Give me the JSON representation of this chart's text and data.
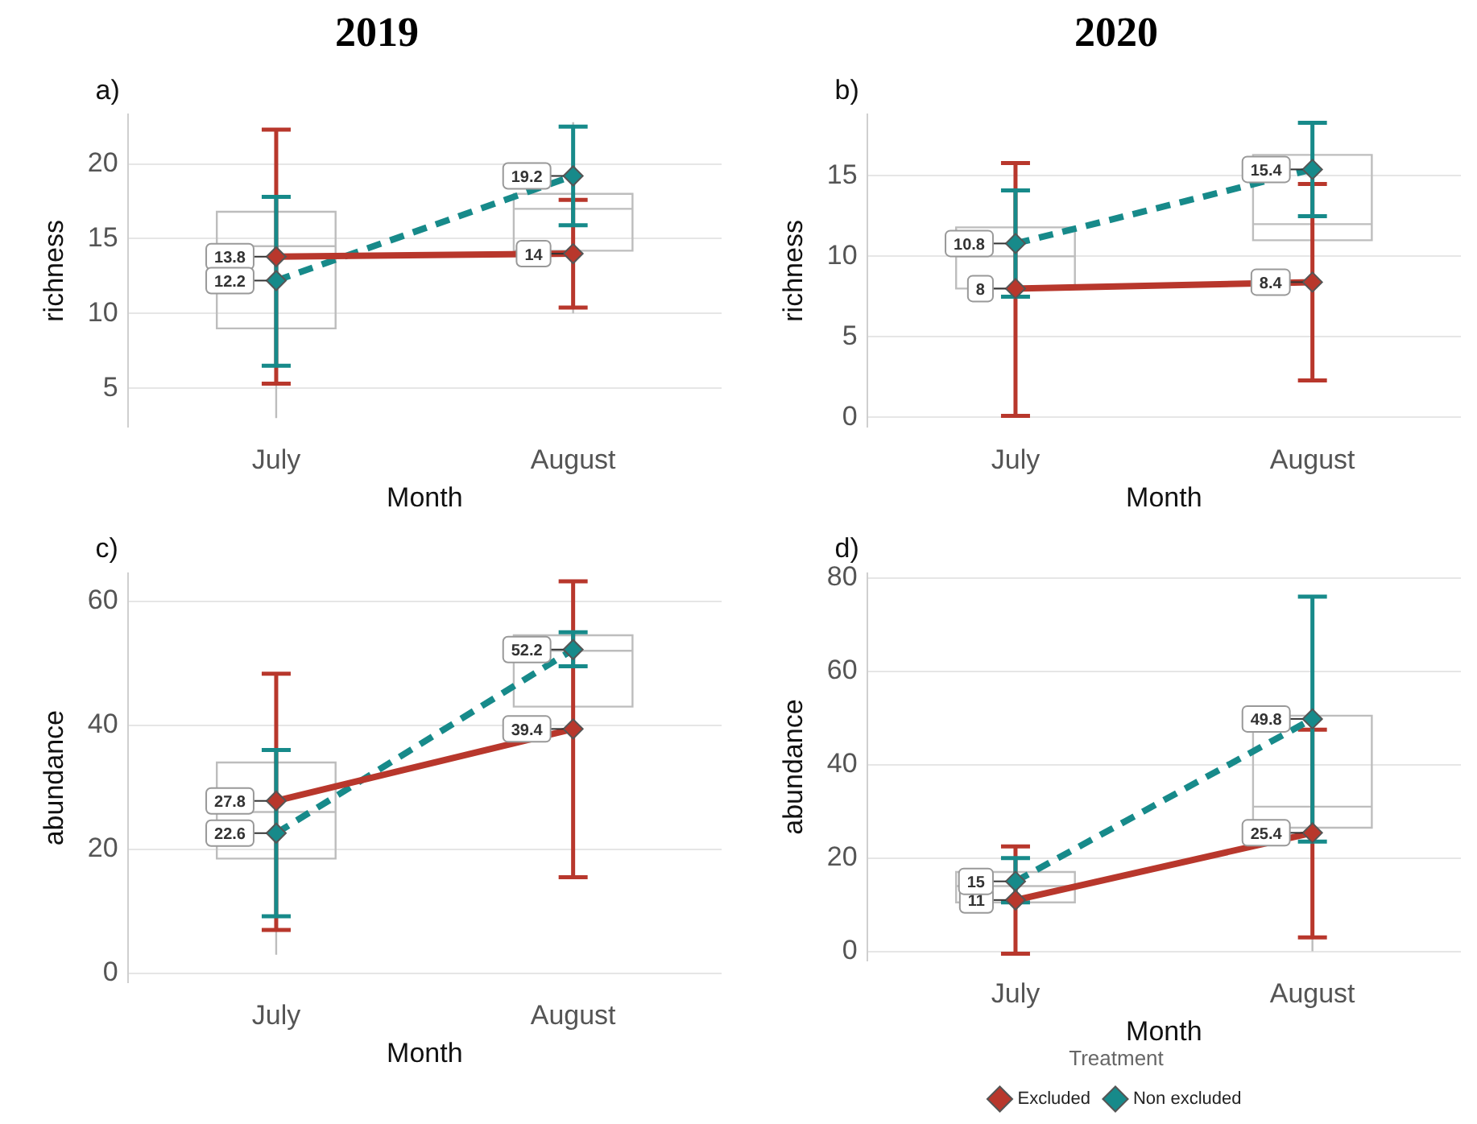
{
  "chart_data": [
    {
      "type": "line",
      "title": "2019",
      "xlabel": "Month",
      "ylabel": "richness",
      "annotations": [
        "a)"
      ],
      "categories": [
        "July",
        "August"
      ],
      "ylim": [
        2.4,
        23.3
      ],
      "yticks": [
        5,
        10,
        15,
        20
      ],
      "grid": "y",
      "marker": "diamond",
      "data_labels": true,
      "series": [
        {
          "type": "box",
          "color": "#bdbdbd",
          "boxes": [
            {
              "low": 3,
              "q1": 9,
              "median": 14.5,
              "q3": 16.8,
              "high": 22
            },
            {
              "low": 10,
              "q1": 14.2,
              "median": 17,
              "q3": 18,
              "high": 22.8
            }
          ]
        },
        {
          "color": "#b8372c",
          "line_style": "solid",
          "values": [
            13.8,
            14
          ],
          "errors": [
            [
              5.3,
              22.3
            ],
            [
              10.4,
              17.6
            ]
          ]
        },
        {
          "color": "#178a8a",
          "line_style": "dashed",
          "values": [
            12.2,
            19.2
          ],
          "errors": [
            [
              6.5,
              17.8
            ],
            [
              15.9,
              22.5
            ]
          ]
        }
      ]
    },
    {
      "type": "line",
      "title": "2020",
      "xlabel": "Month",
      "ylabel": "richness",
      "annotations": [
        "b)"
      ],
      "categories": [
        "July",
        "August"
      ],
      "ylim": [
        -0.6,
        18.8
      ],
      "yticks": [
        0,
        5,
        10,
        15
      ],
      "grid": "y",
      "marker": "diamond",
      "data_labels": true,
      "series": [
        {
          "type": "box",
          "color": "#bdbdbd",
          "boxes": [
            {
              "low": 4,
              "q1": 8,
              "median": 10,
              "q3": 11.8,
              "high": 15.5
            },
            {
              "low": 2.5,
              "q1": 11,
              "median": 12,
              "q3": 16.3,
              "high": 18.3
            }
          ]
        },
        {
          "color": "#b8372c",
          "line_style": "solid",
          "values": [
            8,
            8.4
          ],
          "errors": [
            [
              0.1,
              15.8
            ],
            [
              2.3,
              14.5
            ]
          ]
        },
        {
          "color": "#178a8a",
          "line_style": "dashed",
          "values": [
            10.8,
            15.4
          ],
          "errors": [
            [
              7.5,
              14.1
            ],
            [
              12.5,
              18.3
            ]
          ]
        }
      ]
    },
    {
      "type": "line",
      "xlabel": "Month",
      "ylabel": "abundance",
      "annotations": [
        "c)"
      ],
      "categories": [
        "July",
        "August"
      ],
      "ylim": [
        -1.5,
        64.5
      ],
      "yticks": [
        0,
        20,
        40,
        60
      ],
      "grid": "y",
      "marker": "diamond",
      "data_labels": true,
      "series": [
        {
          "type": "box",
          "color": "#bdbdbd",
          "boxes": [
            {
              "low": 3,
              "q1": 18.5,
              "median": 26,
              "q3": 34,
              "high": 48
            },
            {
              "low": 28,
              "q1": 43,
              "median": 52,
              "q3": 54.5,
              "high": 60
            }
          ]
        },
        {
          "color": "#b8372c",
          "line_style": "solid",
          "values": [
            27.8,
            39.4
          ],
          "errors": [
            [
              7,
              48.3
            ],
            [
              15.5,
              63.2
            ]
          ]
        },
        {
          "color": "#178a8a",
          "line_style": "dashed",
          "values": [
            22.6,
            52.2
          ],
          "errors": [
            [
              9.2,
              36
            ],
            [
              49.5,
              55
            ]
          ]
        }
      ]
    },
    {
      "type": "line",
      "xlabel": "Month",
      "ylabel": "abundance",
      "annotations": [
        "d)"
      ],
      "legend": "bottom",
      "legend_title": "Treatment",
      "categories": [
        "July",
        "August"
      ],
      "ylim": [
        -2,
        81
      ],
      "yticks": [
        0,
        20,
        40,
        60,
        80
      ],
      "grid": "y",
      "marker": "diamond",
      "data_labels": true,
      "series": [
        {
          "type": "box",
          "color": "#bdbdbd",
          "boxes": [
            {
              "low": 4,
              "q1": 10.5,
              "median": 14,
              "q3": 17,
              "high": 20
            },
            {
              "low": 0,
              "q1": 26.5,
              "median": 31,
              "q3": 50.5,
              "high": 75
            }
          ]
        },
        {
          "name": "Excluded",
          "color": "#b8372c",
          "line_style": "solid",
          "values": [
            11,
            25.4
          ],
          "errors": [
            [
              -0.5,
              22.5
            ],
            [
              3,
              47.5
            ]
          ]
        },
        {
          "name": "Non excluded",
          "color": "#178a8a",
          "line_style": "dashed",
          "values": [
            15,
            49.8
          ],
          "errors": [
            [
              10.5,
              20
            ],
            [
              23.5,
              76
            ]
          ]
        }
      ]
    }
  ]
}
